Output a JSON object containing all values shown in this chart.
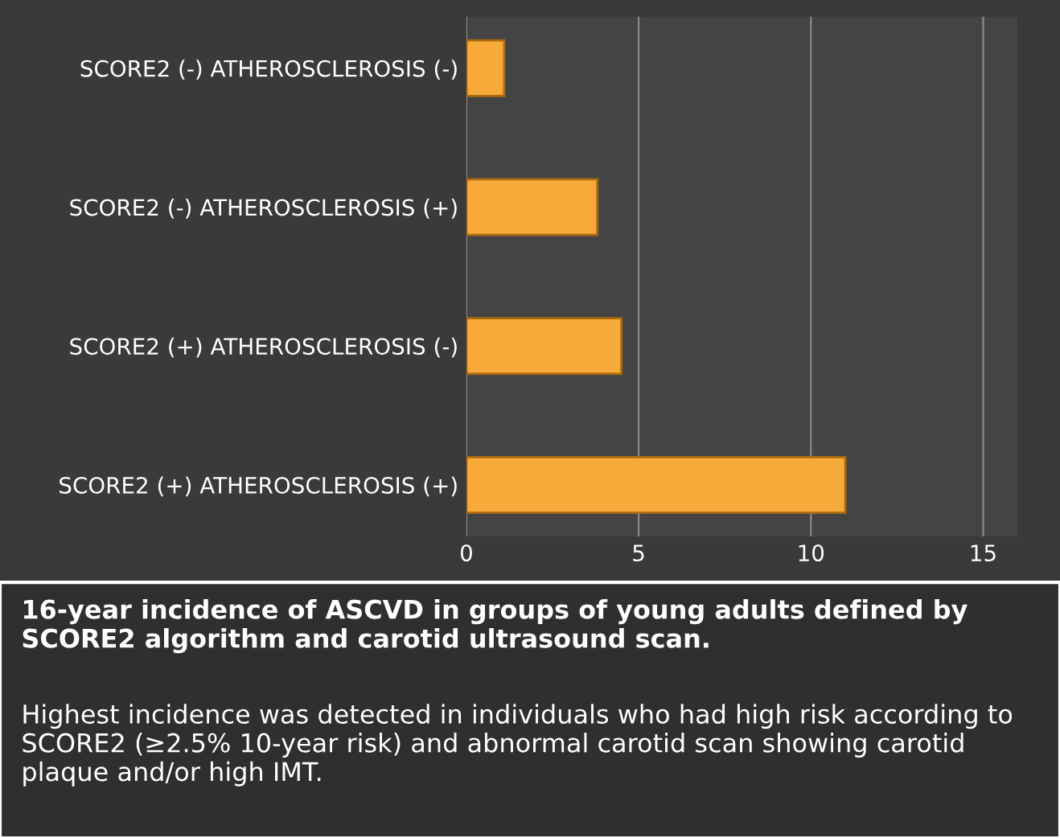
{
  "chart_data": {
    "type": "bar",
    "orientation": "horizontal",
    "categories": [
      "SCORE2 (-) ATHEROSCLEROSIS (-)",
      "SCORE2 (-) ATHEROSCLEROSIS (+)",
      "SCORE2 (+) ATHEROSCLEROSIS (-)",
      "SCORE2 (+) ATHEROSCLEROSIS (+)"
    ],
    "values": [
      1.1,
      3.8,
      4.5,
      11.0
    ],
    "color": "#f7a93a",
    "xlim": [
      0,
      16
    ],
    "xticks": [
      0,
      5,
      10,
      15
    ],
    "grid": "x",
    "legend": false,
    "annotations": [
      "16-year incidence of ASCVD in groups of young adults defined by SCORE2 algorithm and carotid ultrasound scan.",
      "Highest incidence was detected in individuals who had high risk according to SCORE2 (≥2.5% 10-year risk) and abnormal carotid scan showing carotid plaque and/or high IMT."
    ]
  }
}
